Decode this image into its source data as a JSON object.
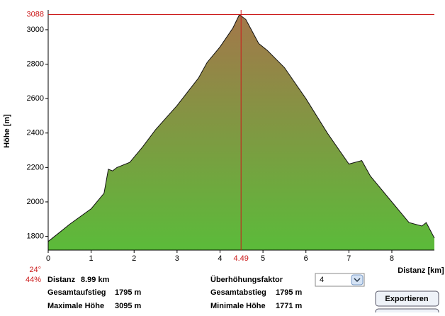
{
  "chart_data": {
    "type": "area",
    "x_label": "Distanz [km]",
    "y_label": "Höhe [m]",
    "x": [
      0,
      0.3,
      0.5,
      1.0,
      1.3,
      1.4,
      1.5,
      1.6,
      1.9,
      2.2,
      2.5,
      3.0,
      3.5,
      3.7,
      4.0,
      4.3,
      4.45,
      4.6,
      4.9,
      5.1,
      5.5,
      6.0,
      6.5,
      7.0,
      7.3,
      7.5,
      8.0,
      8.4,
      8.7,
      8.8,
      8.99
    ],
    "values": [
      1770,
      1830,
      1870,
      1960,
      2050,
      2190,
      2180,
      2200,
      2230,
      2320,
      2420,
      2560,
      2720,
      2810,
      2900,
      3010,
      3088,
      3060,
      2920,
      2880,
      2780,
      2600,
      2400,
      2220,
      2240,
      2150,
      2000,
      1880,
      1860,
      1880,
      1790
    ],
    "xlim": [
      0,
      8.99
    ],
    "ylim": [
      1720,
      3115
    ],
    "xticks": [
      0,
      1,
      2,
      3,
      4,
      5,
      6,
      7,
      8
    ],
    "yticks": [
      1800,
      2000,
      2200,
      2400,
      2600,
      2800,
      3000
    ],
    "gradient": [
      "#a3774a",
      "#5bbb3a"
    ],
    "crosshair": {
      "x": 4.49,
      "y": 3088,
      "color": "#cc1a1a"
    }
  },
  "panel": {
    "angle": "24°",
    "grade": "44%",
    "distance": {
      "label": "Distanz",
      "value": "8.99 km"
    },
    "ascent": {
      "label": "Gesamtaufstieg",
      "value": "1795 m"
    },
    "max": {
      "label": "Maximale Höhe",
      "value": "3095 m"
    },
    "factor_label": "Überhöhungsfaktor",
    "factor": "4",
    "descent": {
      "label": "Gesamtabstieg",
      "value": "1795 m"
    },
    "min": {
      "label": "Minimale Höhe",
      "value": "1771 m"
    },
    "export": "Exportieren"
  }
}
